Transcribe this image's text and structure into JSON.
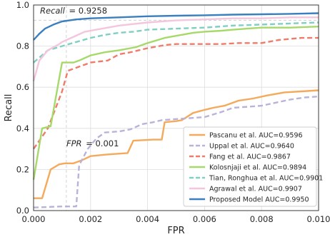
{
  "chart_data": {
    "type": "line",
    "xlabel": "FPR",
    "ylabel": "Recall",
    "xlim": [
      0,
      0.01
    ],
    "ylim": [
      0,
      1.0
    ],
    "xticks": [
      0,
      0.002,
      0.004,
      0.006,
      0.008,
      0.01
    ],
    "xtick_labels": [
      "0.000",
      "0.002",
      "0.004",
      "0.006",
      "0.008",
      "0.010"
    ],
    "yticks": [
      0,
      0.2,
      0.4,
      0.6,
      0.8,
      1.0
    ],
    "ytick_labels": [
      "0.0",
      "0.2",
      "0.4",
      "0.6",
      "0.8",
      "1.0"
    ],
    "grid": true,
    "legend_position": "lower-right",
    "annotations": {
      "recall": {
        "label": "Recall",
        "value_text": "= 0.9258",
        "y": 0.9258
      },
      "fpr": {
        "label": "FPR",
        "value_text": "= 0.001",
        "x": 0.00115
      }
    },
    "series": [
      {
        "name": "Pascanu et al. AUC=0.9596",
        "color": "#f4a95b",
        "dash": "solid",
        "x": [
          0,
          0.0003,
          0.0006,
          0.0009,
          0.0011,
          0.0014,
          0.0017,
          0.002,
          0.0025,
          0.0028,
          0.0033,
          0.0035,
          0.0042,
          0.0045,
          0.0046,
          0.005,
          0.0052,
          0.0056,
          0.006,
          0.0063,
          0.0067,
          0.0072,
          0.0077,
          0.0082,
          0.0088,
          0.0094,
          0.01
        ],
        "y": [
          0.06,
          0.06,
          0.2,
          0.225,
          0.23,
          0.23,
          0.245,
          0.265,
          0.272,
          0.275,
          0.28,
          0.34,
          0.345,
          0.345,
          0.43,
          0.435,
          0.44,
          0.475,
          0.49,
          0.5,
          0.51,
          0.535,
          0.545,
          0.56,
          0.575,
          0.58,
          0.585
        ]
      },
      {
        "name": "Uppal et al. AUC=0.9640",
        "color": "#b9b3da",
        "dash": "dash",
        "x": [
          0,
          0.001,
          0.0015,
          0.0016,
          0.0019,
          0.0022,
          0.0025,
          0.003,
          0.0034,
          0.0038,
          0.0042,
          0.0045,
          0.005,
          0.0055,
          0.006,
          0.0066,
          0.007,
          0.0075,
          0.008,
          0.0085,
          0.009,
          0.0095,
          0.01
        ],
        "y": [
          0.015,
          0.02,
          0.02,
          0.22,
          0.3,
          0.35,
          0.38,
          0.385,
          0.395,
          0.42,
          0.43,
          0.44,
          0.445,
          0.45,
          0.455,
          0.48,
          0.5,
          0.505,
          0.51,
          0.525,
          0.54,
          0.55,
          0.555
        ]
      },
      {
        "name": "Fang et al. AUC=0.9867",
        "color": "#ef7b68",
        "dash": "dash",
        "x": [
          0,
          0.0005,
          0.001,
          0.0012,
          0.0016,
          0.002,
          0.0026,
          0.003,
          0.0034,
          0.004,
          0.0046,
          0.005,
          0.006,
          0.0066,
          0.0072,
          0.008,
          0.0086,
          0.0094,
          0.01
        ],
        "y": [
          0.3,
          0.4,
          0.58,
          0.68,
          0.7,
          0.72,
          0.73,
          0.76,
          0.77,
          0.79,
          0.805,
          0.81,
          0.81,
          0.81,
          0.815,
          0.815,
          0.83,
          0.84,
          0.84
        ]
      },
      {
        "name": "Kolosnjaji et al. AUC=0.9894",
        "color": "#a6d96a",
        "dash": "solid",
        "x": [
          0,
          0.0003,
          0.0006,
          0.001,
          0.0014,
          0.0016,
          0.002,
          0.0025,
          0.003,
          0.0036,
          0.004,
          0.0046,
          0.005,
          0.0056,
          0.006,
          0.0066,
          0.007,
          0.0075,
          0.008,
          0.009,
          0.01
        ],
        "y": [
          0.15,
          0.4,
          0.41,
          0.72,
          0.72,
          0.73,
          0.755,
          0.77,
          0.78,
          0.795,
          0.815,
          0.84,
          0.85,
          0.865,
          0.87,
          0.875,
          0.88,
          0.885,
          0.89,
          0.89,
          0.895
        ]
      },
      {
        "name": "Tian, Ronghua et al. AUC=0.9901",
        "color": "#80cfc3",
        "dash": "dash",
        "x": [
          0,
          0.0005,
          0.001,
          0.0015,
          0.002,
          0.0025,
          0.003,
          0.0035,
          0.004,
          0.005,
          0.006,
          0.007,
          0.008,
          0.009,
          0.01
        ],
        "y": [
          0.72,
          0.78,
          0.8,
          0.82,
          0.84,
          0.855,
          0.865,
          0.87,
          0.88,
          0.885,
          0.89,
          0.9,
          0.905,
          0.91,
          0.915
        ]
      },
      {
        "name": "Agrawal et al. AUC=0.9907",
        "color": "#f4c6de",
        "dash": "solid",
        "x": [
          0,
          0.0002,
          0.0005,
          0.0009,
          0.001,
          0.0014,
          0.0018,
          0.0022,
          0.003,
          0.004,
          0.005,
          0.006,
          0.007,
          0.008,
          0.009,
          0.01
        ],
        "y": [
          0.63,
          0.73,
          0.78,
          0.81,
          0.82,
          0.845,
          0.87,
          0.88,
          0.9,
          0.915,
          0.925,
          0.93,
          0.935,
          0.935,
          0.94,
          0.94
        ]
      },
      {
        "name": "Proposed Model AUC=0.9950",
        "color": "#3a7fbf",
        "dash": "solid",
        "x": [
          0,
          0.0002,
          0.0004,
          0.0007,
          0.001,
          0.0015,
          0.002,
          0.003,
          0.004,
          0.005,
          0.006,
          0.007,
          0.008,
          0.009,
          0.01
        ],
        "y": [
          0.83,
          0.86,
          0.885,
          0.905,
          0.92,
          0.93,
          0.935,
          0.94,
          0.945,
          0.948,
          0.95,
          0.953,
          0.955,
          0.957,
          0.96
        ]
      }
    ]
  }
}
